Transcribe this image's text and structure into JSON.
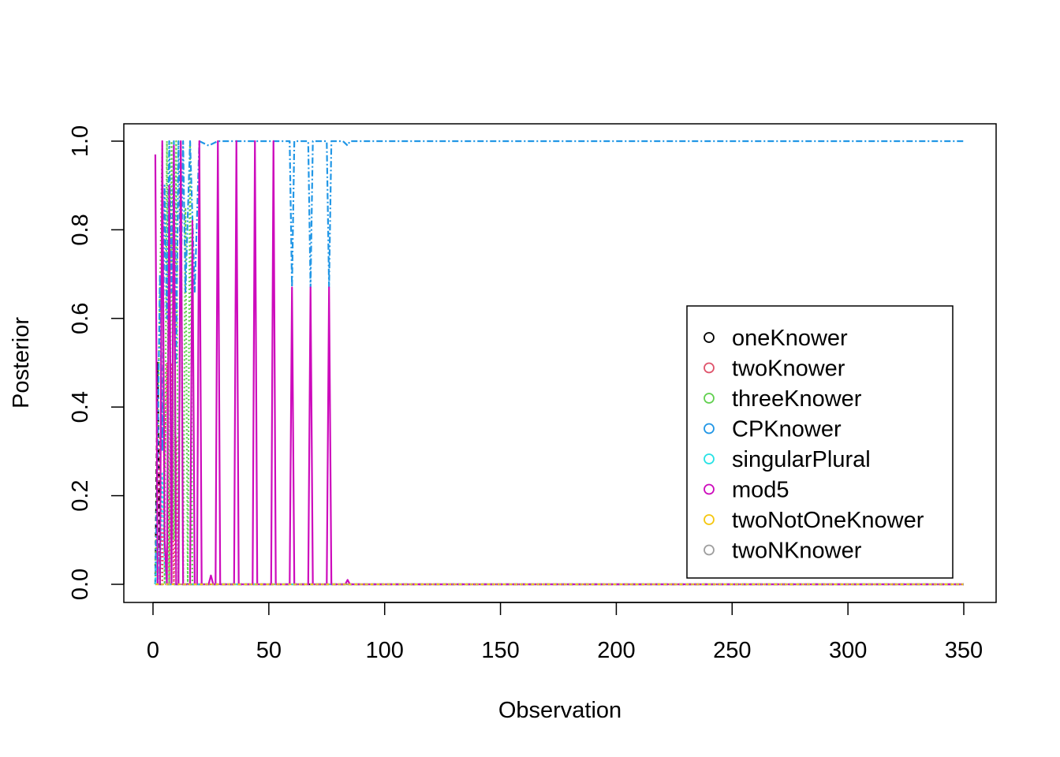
{
  "chart_data": {
    "type": "line",
    "title": "",
    "xlabel": "Observation",
    "ylabel": "Posterior",
    "xlim": [
      0,
      350
    ],
    "ylim": [
      0,
      1
    ],
    "xticks": [
      0,
      50,
      100,
      150,
      200,
      250,
      300,
      350
    ],
    "yticks": [
      0.0,
      0.2,
      0.4,
      0.6,
      0.8,
      1.0
    ],
    "ytick_labels": [
      "0.0",
      "0.2",
      "0.4",
      "0.6",
      "0.8",
      "1.0"
    ],
    "grid": false,
    "legend_position": "right",
    "n_observations": 350,
    "series": [
      {
        "name": "oneKnower",
        "color": "#000000",
        "dash": "6,4",
        "points": [
          [
            1,
            0
          ],
          [
            2,
            0.5
          ],
          [
            3,
            0.0
          ],
          [
            4,
            0.0
          ],
          [
            350,
            0.0
          ]
        ]
      },
      {
        "name": "twoKnower",
        "color": "#DF536B",
        "dash": "2,3",
        "points": [
          [
            1,
            0
          ],
          [
            3,
            0.33
          ],
          [
            4,
            0.0
          ],
          [
            6,
            0.5
          ],
          [
            7,
            0.0
          ],
          [
            8,
            0.5
          ],
          [
            9,
            0.0
          ],
          [
            10,
            0.33
          ],
          [
            11,
            0.0
          ],
          [
            350,
            0.0
          ]
        ]
      },
      {
        "name": "threeKnower",
        "color": "#61D04F",
        "dash": "2,3",
        "points": [
          [
            1,
            0
          ],
          [
            4,
            0.99
          ],
          [
            5,
            0.0
          ],
          [
            6,
            1.0
          ],
          [
            7,
            0.0
          ],
          [
            8,
            1.0
          ],
          [
            9,
            0.1
          ],
          [
            10,
            1.0
          ],
          [
            11,
            0.0
          ],
          [
            12,
            1.0
          ],
          [
            13,
            0.0
          ],
          [
            14,
            0.85
          ],
          [
            15,
            0.0
          ],
          [
            16,
            1.0
          ],
          [
            17,
            0.0
          ],
          [
            350,
            0.0
          ]
        ]
      },
      {
        "name": "CPKnower",
        "color": "#2297E6",
        "dash": "8,3,2,3",
        "points": [
          [
            1,
            0
          ],
          [
            2,
            0.3
          ],
          [
            3,
            0.7
          ],
          [
            4,
            0.3
          ],
          [
            5,
            0.9
          ],
          [
            6,
            0.6
          ],
          [
            7,
            1.0
          ],
          [
            8,
            0.66
          ],
          [
            9,
            1.0
          ],
          [
            10,
            0.5
          ],
          [
            11,
            1.0
          ],
          [
            12,
            0.66
          ],
          [
            13,
            1.0
          ],
          [
            14,
            0.66
          ],
          [
            16,
            1.0
          ],
          [
            18,
            0.66
          ],
          [
            20,
            1.0
          ],
          [
            24,
            0.99
          ],
          [
            28,
            1.0
          ],
          [
            36,
            1.0
          ],
          [
            44,
            1.0
          ],
          [
            52,
            1.0
          ],
          [
            59,
            1.0
          ],
          [
            60,
            0.67
          ],
          [
            61,
            1.0
          ],
          [
            67,
            1.0
          ],
          [
            68,
            0.67
          ],
          [
            69,
            1.0
          ],
          [
            75,
            1.0
          ],
          [
            76,
            0.67
          ],
          [
            77,
            1.0
          ],
          [
            82,
            1.0
          ],
          [
            84,
            0.99
          ],
          [
            85,
            1.0
          ],
          [
            350,
            1.0
          ]
        ]
      },
      {
        "name": "singularPlural",
        "color": "#28E2E5",
        "dash": "3,3",
        "points": [
          [
            1,
            0
          ],
          [
            2,
            0.1
          ],
          [
            3,
            0.0
          ],
          [
            4,
            0.25
          ],
          [
            5,
            0.05
          ],
          [
            6,
            0.0
          ],
          [
            350,
            0.0
          ]
        ]
      },
      {
        "name": "mod5",
        "color": "#CD0BBC",
        "dash": "",
        "points": [
          [
            1,
            0.97
          ],
          [
            2,
            0.0
          ],
          [
            3,
            0.0
          ],
          [
            4,
            1.0
          ],
          [
            5,
            0.1
          ],
          [
            6,
            0.0
          ],
          [
            7,
            0.9
          ],
          [
            8,
            0.0
          ],
          [
            9,
            0.99
          ],
          [
            10,
            0.0
          ],
          [
            11,
            0.0
          ],
          [
            12,
            1.0
          ],
          [
            13,
            0.0
          ],
          [
            16,
            0.0
          ],
          [
            17,
            0.82
          ],
          [
            18,
            0.0
          ],
          [
            19,
            0.0
          ],
          [
            20,
            1.0
          ],
          [
            21,
            0.0
          ],
          [
            24,
            0.0
          ],
          [
            25,
            0.02
          ],
          [
            26,
            0.0
          ],
          [
            27,
            0.0
          ],
          [
            28,
            1.0
          ],
          [
            29,
            0.0
          ],
          [
            35,
            0.0
          ],
          [
            36,
            1.0
          ],
          [
            37,
            0.0
          ],
          [
            43,
            0.0
          ],
          [
            44,
            1.0
          ],
          [
            45,
            0.0
          ],
          [
            51,
            0.0
          ],
          [
            52,
            1.0
          ],
          [
            53,
            0.0
          ],
          [
            59,
            0.0
          ],
          [
            60,
            0.67
          ],
          [
            61,
            0.0
          ],
          [
            67,
            0.0
          ],
          [
            68,
            0.67
          ],
          [
            69,
            0.0
          ],
          [
            75,
            0.0
          ],
          [
            76,
            0.67
          ],
          [
            77,
            0.0
          ],
          [
            83,
            0.0
          ],
          [
            84,
            0.01
          ],
          [
            85,
            0.0
          ],
          [
            350,
            0.0
          ]
        ]
      },
      {
        "name": "twoNotOneKnower",
        "color": "#F5C710",
        "dash": "4,3",
        "points": [
          [
            1,
            0
          ],
          [
            350,
            0
          ]
        ]
      },
      {
        "name": "twoNKnower",
        "color": "#9E9E9E",
        "dash": "1,3",
        "points": [
          [
            1,
            0
          ],
          [
            350,
            0
          ]
        ]
      }
    ]
  }
}
